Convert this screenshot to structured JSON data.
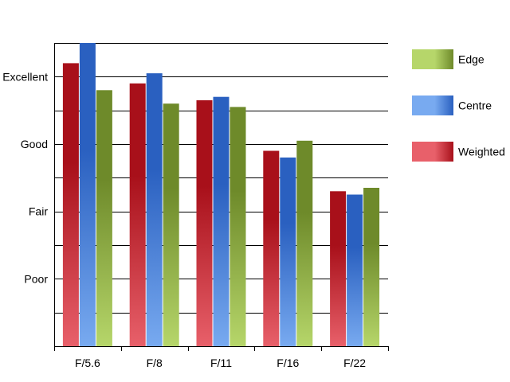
{
  "chart_data": {
    "type": "bar",
    "categories": [
      "F/5.6",
      "F/8",
      "F/11",
      "F/16",
      "F/22"
    ],
    "series": [
      {
        "name": "Weighted",
        "values": [
          8.4,
          7.8,
          7.3,
          5.8,
          4.6
        ],
        "color_dark": "#a8101a",
        "color_light": "#e8606a"
      },
      {
        "name": "Centre",
        "values": [
          9.0,
          8.1,
          7.4,
          5.6,
          4.5
        ],
        "color_dark": "#2a60c0",
        "color_light": "#78aaf0"
      },
      {
        "name": "Edge",
        "values": [
          7.6,
          7.2,
          7.1,
          6.1,
          4.7
        ],
        "color_dark": "#6e8a2a",
        "color_light": "#b6d66a"
      }
    ],
    "ylim": [
      0,
      9
    ],
    "gridlines": [
      1,
      2,
      3,
      4,
      5,
      6,
      7,
      8,
      9
    ],
    "ytick_labels": [
      {
        "value": 2,
        "label": "Poor"
      },
      {
        "value": 4,
        "label": "Fair"
      },
      {
        "value": 6,
        "label": "Good"
      },
      {
        "value": 8,
        "label": "Excellent"
      }
    ],
    "legend": {
      "placement": "right",
      "order": [
        "Edge",
        "Centre",
        "Weighted"
      ]
    },
    "grid": true,
    "title": "",
    "xlabel": "",
    "ylabel": ""
  }
}
